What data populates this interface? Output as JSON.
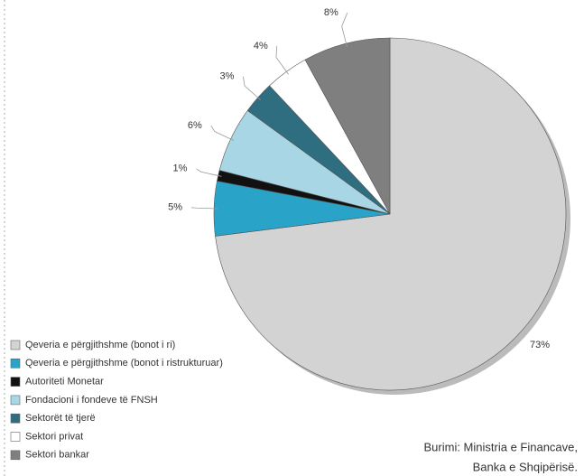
{
  "chart_data": {
    "type": "pie",
    "categories": [
      "Qeveria e përgjithshme (bonot i ri)",
      "Qeveria e përgjithshme (bonot i ristrukturuar)",
      "Autoriteti Monetar",
      "Fondacioni i fondeve të FNSH",
      "Sektorët të tjerë",
      "Sektori privat",
      "Sektori bankar"
    ],
    "values": [
      73,
      5,
      1,
      6,
      3,
      4,
      8
    ],
    "value_labels": [
      "73%",
      "5%",
      "1%",
      "6%",
      "3%",
      "4%",
      "8%"
    ],
    "colors": [
      "#d3d3d3",
      "#2aa3c9",
      "#111111",
      "#a9d6e5",
      "#2e6e80",
      "#ffffff",
      "#7f7f7f"
    ],
    "legend": "bottom-left",
    "source": [
      "Burimi: Ministria e Financave,",
      "Banka e Shqipërisë."
    ]
  }
}
